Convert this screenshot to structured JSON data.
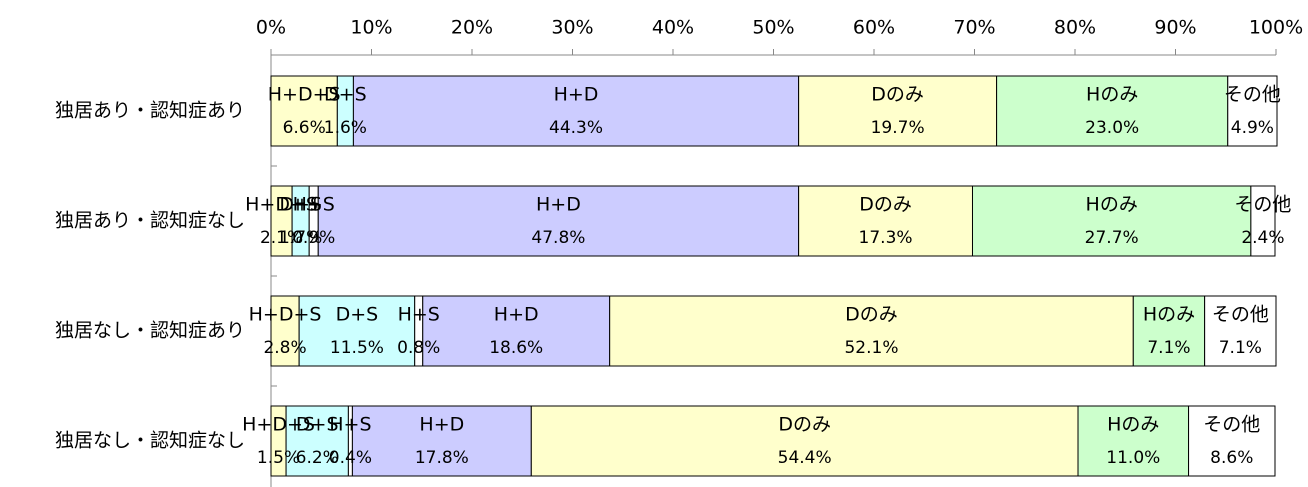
{
  "chart_data": {
    "type": "stacked_bar_horizontal",
    "categories": [
      "独居あり・認知症あり",
      "独居あり・認知症なし",
      "独居なし・認知症あり",
      "独居なし・認知症なし"
    ],
    "series": [
      {
        "name": "H+D+S",
        "color": "#FFFFCC",
        "values": [
          6.6,
          2.1,
          2.8,
          1.5
        ],
        "value_labels": [
          "6.6%",
          "2.1%",
          "2.8%",
          "1.5%"
        ]
      },
      {
        "name": "D+S",
        "color": "#CCFFFF",
        "values": [
          1.6,
          1.7,
          11.5,
          6.2
        ],
        "value_labels": [
          "1.6%",
          "1.7%",
          "11.5%",
          "6.2%"
        ]
      },
      {
        "name": "H+S",
        "color": "#FFFFFF",
        "values": [
          0,
          0.9,
          0.8,
          0.4
        ],
        "value_labels": [
          null,
          "0.9%",
          "0.8%",
          "0.4%"
        ]
      },
      {
        "name": "H+D",
        "color": "#CCCCFF",
        "values": [
          44.3,
          47.8,
          18.6,
          17.8
        ],
        "value_labels": [
          "44.3%",
          "47.8%",
          "18.6%",
          "17.8%"
        ]
      },
      {
        "name": "Dのみ",
        "color": "#FFFFCC",
        "values": [
          19.7,
          17.3,
          52.1,
          54.4
        ],
        "value_labels": [
          "19.7%",
          "17.3%",
          "52.1%",
          "54.4%"
        ]
      },
      {
        "name": "Hのみ",
        "color": "#CCFFCC",
        "values": [
          23.0,
          27.7,
          7.1,
          11.0
        ],
        "value_labels": [
          "23.0%",
          "27.7%",
          "7.1%",
          "11.0%"
        ]
      },
      {
        "name": "その他",
        "color": "#FFFFFF",
        "values": [
          4.9,
          2.4,
          7.1,
          8.6
        ],
        "value_labels": [
          "4.9%",
          "2.4%",
          "7.1%",
          "8.6%"
        ]
      }
    ],
    "xlim": [
      0,
      100
    ],
    "xticks": [
      {
        "value": 0,
        "label": "0%"
      },
      {
        "value": 10,
        "label": "10%"
      },
      {
        "value": 20,
        "label": "20%"
      },
      {
        "value": 30,
        "label": "30%"
      },
      {
        "value": 40,
        "label": "40%"
      },
      {
        "value": 50,
        "label": "50%"
      },
      {
        "value": 60,
        "label": "60%"
      },
      {
        "value": 70,
        "label": "70%"
      },
      {
        "value": 80,
        "label": "80%"
      },
      {
        "value": 90,
        "label": "90%"
      },
      {
        "value": 100,
        "label": "100%"
      }
    ]
  }
}
